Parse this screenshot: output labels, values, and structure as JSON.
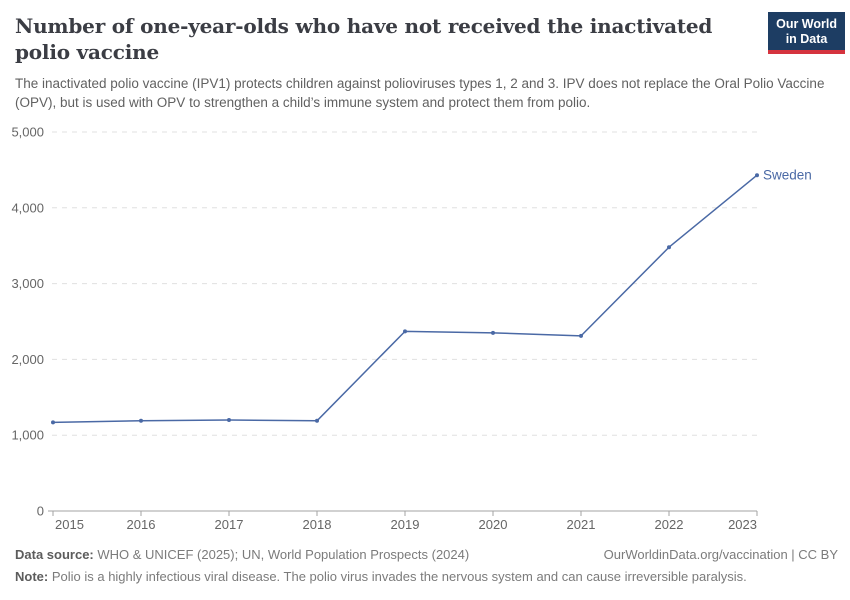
{
  "header": {
    "title": "Number of one-year-olds who have not received the inactivated polio vaccine",
    "subtitle": "The inactivated polio vaccine (IPV1) protects children against polioviruses types 1, 2 and 3. IPV does not replace the Oral Polio Vaccine (OPV), but is used with OPV to strengthen a child’s immune system and protect them from polio.",
    "logo": {
      "line1": "Our World",
      "line2": "in Data",
      "bg_color": "#1d3d63",
      "accent_color": "#d5333e"
    }
  },
  "chart_data": {
    "type": "line",
    "title": "Number of one-year-olds who have not received the inactivated polio vaccine",
    "xlabel": "",
    "ylabel": "",
    "x": [
      2015,
      2016,
      2017,
      2018,
      2019,
      2020,
      2021,
      2022,
      2023
    ],
    "x_tick_labels": [
      "2015",
      "2016",
      "2017",
      "2018",
      "2019",
      "2020",
      "2021",
      "2022",
      "2023"
    ],
    "ylim": [
      0,
      5000
    ],
    "y_ticks": [
      0,
      1000,
      2000,
      3000,
      4000,
      5000
    ],
    "y_tick_labels": [
      "0",
      "1,000",
      "2,000",
      "3,000",
      "4,000",
      "5,000"
    ],
    "grid": "horizontal-dashed",
    "legend_position": "end-of-line-label",
    "series": [
      {
        "name": "Sweden",
        "color": "#4a69a5",
        "values": [
          1170,
          1190,
          1200,
          1190,
          2370,
          2350,
          2310,
          3480,
          4430
        ]
      }
    ]
  },
  "footer": {
    "source_label": "Data source:",
    "source_text": " WHO & UNICEF (2025); UN, World Population Prospects (2024)",
    "link_text": "OurWorldinData.org/vaccination | CC BY",
    "note_label": "Note:",
    "note_text": " Polio is a highly infectious viral disease. The polio virus invades the nervous system and can cause irreversible paralysis."
  }
}
